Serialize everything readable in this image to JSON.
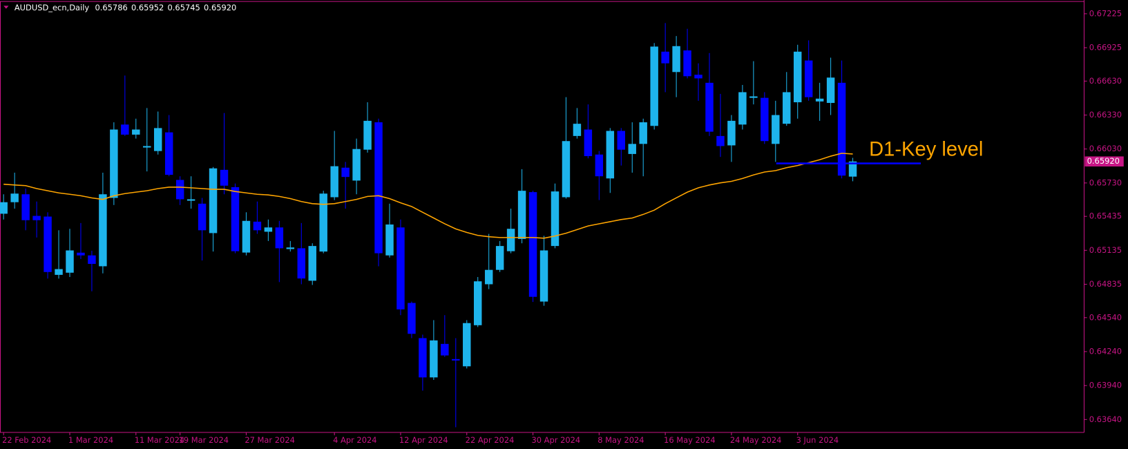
{
  "chart_data": {
    "type": "candlestick",
    "title": "AUDUSD_ecn,Daily",
    "info_values": [
      {
        "value": 0.65786,
        "label": "0.65786"
      },
      {
        "value": 0.65952,
        "label": "0.65952"
      },
      {
        "value": 0.65745,
        "label": "0.65745"
      },
      {
        "value": 0.6592,
        "label": "0.65920"
      }
    ],
    "categories": [
      "22 Feb 2024",
      null,
      null,
      null,
      null,
      null,
      "1 Mar 2024",
      null,
      null,
      null,
      null,
      null,
      "11 Mar 2024",
      null,
      null,
      null,
      "19 Mar 2024",
      null,
      null,
      null,
      null,
      null,
      "27 Mar 2024",
      null,
      null,
      null,
      null,
      null,
      null,
      null,
      "4 Apr 2024",
      null,
      null,
      null,
      null,
      null,
      "12 Apr 2024",
      null,
      null,
      null,
      null,
      null,
      "22 Apr 2024",
      null,
      null,
      null,
      null,
      null,
      "30 Apr 2024",
      null,
      null,
      null,
      null,
      null,
      "8 May 2024",
      null,
      null,
      null,
      null,
      null,
      "16 May 2024",
      null,
      null,
      null,
      null,
      null,
      "24 May 2024",
      null,
      null,
      null,
      null,
      null,
      "3 Jun 2024",
      null,
      null,
      null,
      null,
      null
    ],
    "open": [
      0.65458,
      0.6556,
      0.6563,
      0.65439,
      0.65433,
      0.64918,
      0.64937,
      0.65114,
      0.6509,
      0.64994,
      0.65598,
      0.66246,
      0.66157,
      0.66043,
      0.66012,
      0.66177,
      0.65757,
      0.65573,
      0.65547,
      0.65287,
      0.65846,
      0.65693,
      0.65115,
      0.65388,
      0.65299,
      0.65337,
      0.65146,
      0.65153,
      0.64866,
      0.65124,
      0.65604,
      0.65865,
      0.65751,
      0.66024,
      0.66266,
      0.6509,
      0.65337,
      0.6467,
      0.64359,
      0.64012,
      0.64308,
      0.64174,
      0.6411,
      0.64473,
      0.64835,
      0.64962,
      0.65127,
      0.65235,
      0.65649,
      0.64682,
      0.65173,
      0.65604,
      0.66145,
      0.66202,
      0.65981,
      0.6577,
      0.6619,
      0.65986,
      0.66075,
      0.66234,
      0.6689,
      0.6671,
      0.66901,
      0.66686,
      0.66615,
      0.66145,
      0.66062,
      0.66246,
      0.66482,
      0.66482,
      0.66075,
      0.66253,
      0.66443,
      0.66812,
      0.6645,
      0.66437,
      0.66615,
      0.65786
    ],
    "high": [
      0.6563,
      0.65821,
      0.65681,
      0.65566,
      0.65471,
      0.65312,
      0.65325,
      0.65376,
      0.65131,
      0.65821,
      0.66266,
      0.66679,
      0.66298,
      0.66392,
      0.66361,
      0.6633,
      0.65789,
      0.65789,
      0.65598,
      0.65871,
      0.66348,
      0.65725,
      0.65471,
      0.65566,
      0.65407,
      0.65395,
      0.65217,
      0.65376,
      0.65197,
      0.65661,
      0.6619,
      0.65916,
      0.66122,
      0.66443,
      0.66298,
      0.65547,
      0.65407,
      0.64682,
      0.6439,
      0.64518,
      0.64562,
      0.64359,
      0.64518,
      0.64899,
      0.6528,
      0.65217,
      0.65503,
      0.65852,
      0.65661,
      0.65263,
      0.65725,
      0.66488,
      0.66392,
      0.66424,
      0.66013,
      0.66215,
      0.66215,
      0.66266,
      0.66298,
      0.66966,
      0.67143,
      0.67028,
      0.67092,
      0.66787,
      0.66878,
      0.66517,
      0.6633,
      0.66596,
      0.66806,
      0.66532,
      0.66456,
      0.6671,
      0.66951,
      0.6699,
      0.66615,
      0.66837,
      0.66812,
      0.65952
    ],
    "low": [
      0.65407,
      0.65503,
      0.65312,
      0.65248,
      0.64885,
      0.64885,
      0.64899,
      0.65058,
      0.64773,
      0.64931,
      0.65535,
      0.66145,
      0.66122,
      0.65832,
      0.65981,
      0.65789,
      0.65535,
      0.65503,
      0.65045,
      0.65124,
      0.6563,
      0.65109,
      0.6509,
      0.6528,
      0.65217,
      0.64854,
      0.65124,
      0.64835,
      0.64829,
      0.65109,
      0.65579,
      0.65503,
      0.6563,
      0.65998,
      0.64994,
      0.65071,
      0.64562,
      0.64359,
      0.63895,
      0.6399,
      0.64193,
      0.63572,
      0.64091,
      0.64457,
      0.64792,
      0.64943,
      0.65109,
      0.65197,
      0.64679,
      0.64645,
      0.65153,
      0.65592,
      0.66122,
      0.65947,
      0.65579,
      0.65642,
      0.65884,
      0.65821,
      0.65789,
      0.66202,
      0.66532,
      0.66488,
      0.66654,
      0.66456,
      0.66145,
      0.6596,
      0.65916,
      0.66202,
      0.66424,
      0.66075,
      0.65916,
      0.66235,
      0.66298,
      0.66456,
      0.66279,
      0.6633,
      0.6577,
      0.65745
    ],
    "close": [
      0.6556,
      0.65636,
      0.65401,
      0.65401,
      0.64943,
      0.64969,
      0.65134,
      0.6509,
      0.65015,
      0.6563,
      0.66202,
      0.66157,
      0.66202,
      0.66056,
      0.66215,
      0.65802,
      0.65586,
      0.65586,
      0.65312,
      0.65859,
      0.65706,
      0.65127,
      0.65395,
      0.65312,
      0.65337,
      0.65153,
      0.6516,
      0.64886,
      0.65173,
      0.65636,
      0.65878,
      0.65783,
      0.6603,
      0.66279,
      0.65109,
      0.65363,
      0.64613,
      0.64397,
      0.64012,
      0.64339,
      0.64206,
      0.64168,
      0.64492,
      0.64861,
      0.64962,
      0.65173,
      0.65325,
      0.65661,
      0.64724,
      0.65134,
      0.65655,
      0.661,
      0.66253,
      0.65967,
      0.65789,
      0.6619,
      0.66024,
      0.66075,
      0.66266,
      0.66935,
      0.66787,
      0.66939,
      0.66673,
      0.66654,
      0.66183,
      0.66056,
      0.66279,
      0.66532,
      0.66495,
      0.661,
      0.6633,
      0.66532,
      0.6689,
      0.66488,
      0.66475,
      0.66661,
      0.65795,
      0.6592
    ],
    "up_color": "#1eb4ec",
    "down_color": "#0000ff",
    "ma": {
      "color": "#ffa500",
      "values": [
        0.65719,
        0.65712,
        0.65706,
        0.6568,
        0.65661,
        0.65642,
        0.6563,
        0.65617,
        0.65598,
        0.65585,
        0.65617,
        0.65636,
        0.65649,
        0.65661,
        0.6568,
        0.65693,
        0.65693,
        0.65687,
        0.6568,
        0.65674,
        0.65674,
        0.65655,
        0.65642,
        0.6563,
        0.65624,
        0.65611,
        0.65592,
        0.65566,
        0.65547,
        0.65541,
        0.65547,
        0.65566,
        0.65585,
        0.65611,
        0.65617,
        0.65592,
        0.65554,
        0.65522,
        0.65471,
        0.6542,
        0.65369,
        0.65324,
        0.65293,
        0.65267,
        0.65255,
        0.65248,
        0.65248,
        0.65248,
        0.65248,
        0.65242,
        0.65261,
        0.65286,
        0.65318,
        0.6535,
        0.65369,
        0.65388,
        0.65407,
        0.6542,
        0.65452,
        0.6549,
        0.65547,
        0.65598,
        0.65649,
        0.65687,
        0.65712,
        0.65731,
        0.65744,
        0.6577,
        0.65801,
        0.65827,
        0.65839,
        0.65865,
        0.65884,
        0.65909,
        0.65935,
        0.65967,
        0.65992,
        0.65986
      ]
    },
    "key_level": {
      "text": "D1-Key level",
      "value": 0.65903,
      "line_color": "#0000ff",
      "text_color": "#ffa500"
    },
    "last_price": {
      "value": 0.6592,
      "label": "0.65920"
    },
    "ylim": [
      0.63526,
      0.67327
    ],
    "yticks": [
      0.67225,
      0.66925,
      {
        "value": 0.6663,
        "label": "0.66630"
      },
      {
        "value": 0.6633,
        "label": "0.66330"
      },
      {
        "value": 0.6603,
        "label": "0.66030"
      },
      {
        "value": 0.6573,
        "label": "0.65730"
      },
      0.65435,
      0.65135,
      0.64835,
      {
        "value": 0.6454,
        "label": "0.64540"
      },
      {
        "value": 0.6424,
        "label": "0.64240"
      },
      {
        "value": 0.6394,
        "label": "0.63940"
      },
      {
        "value": 0.6364,
        "label": "0.63640"
      }
    ],
    "axis_color": "#c71585"
  }
}
